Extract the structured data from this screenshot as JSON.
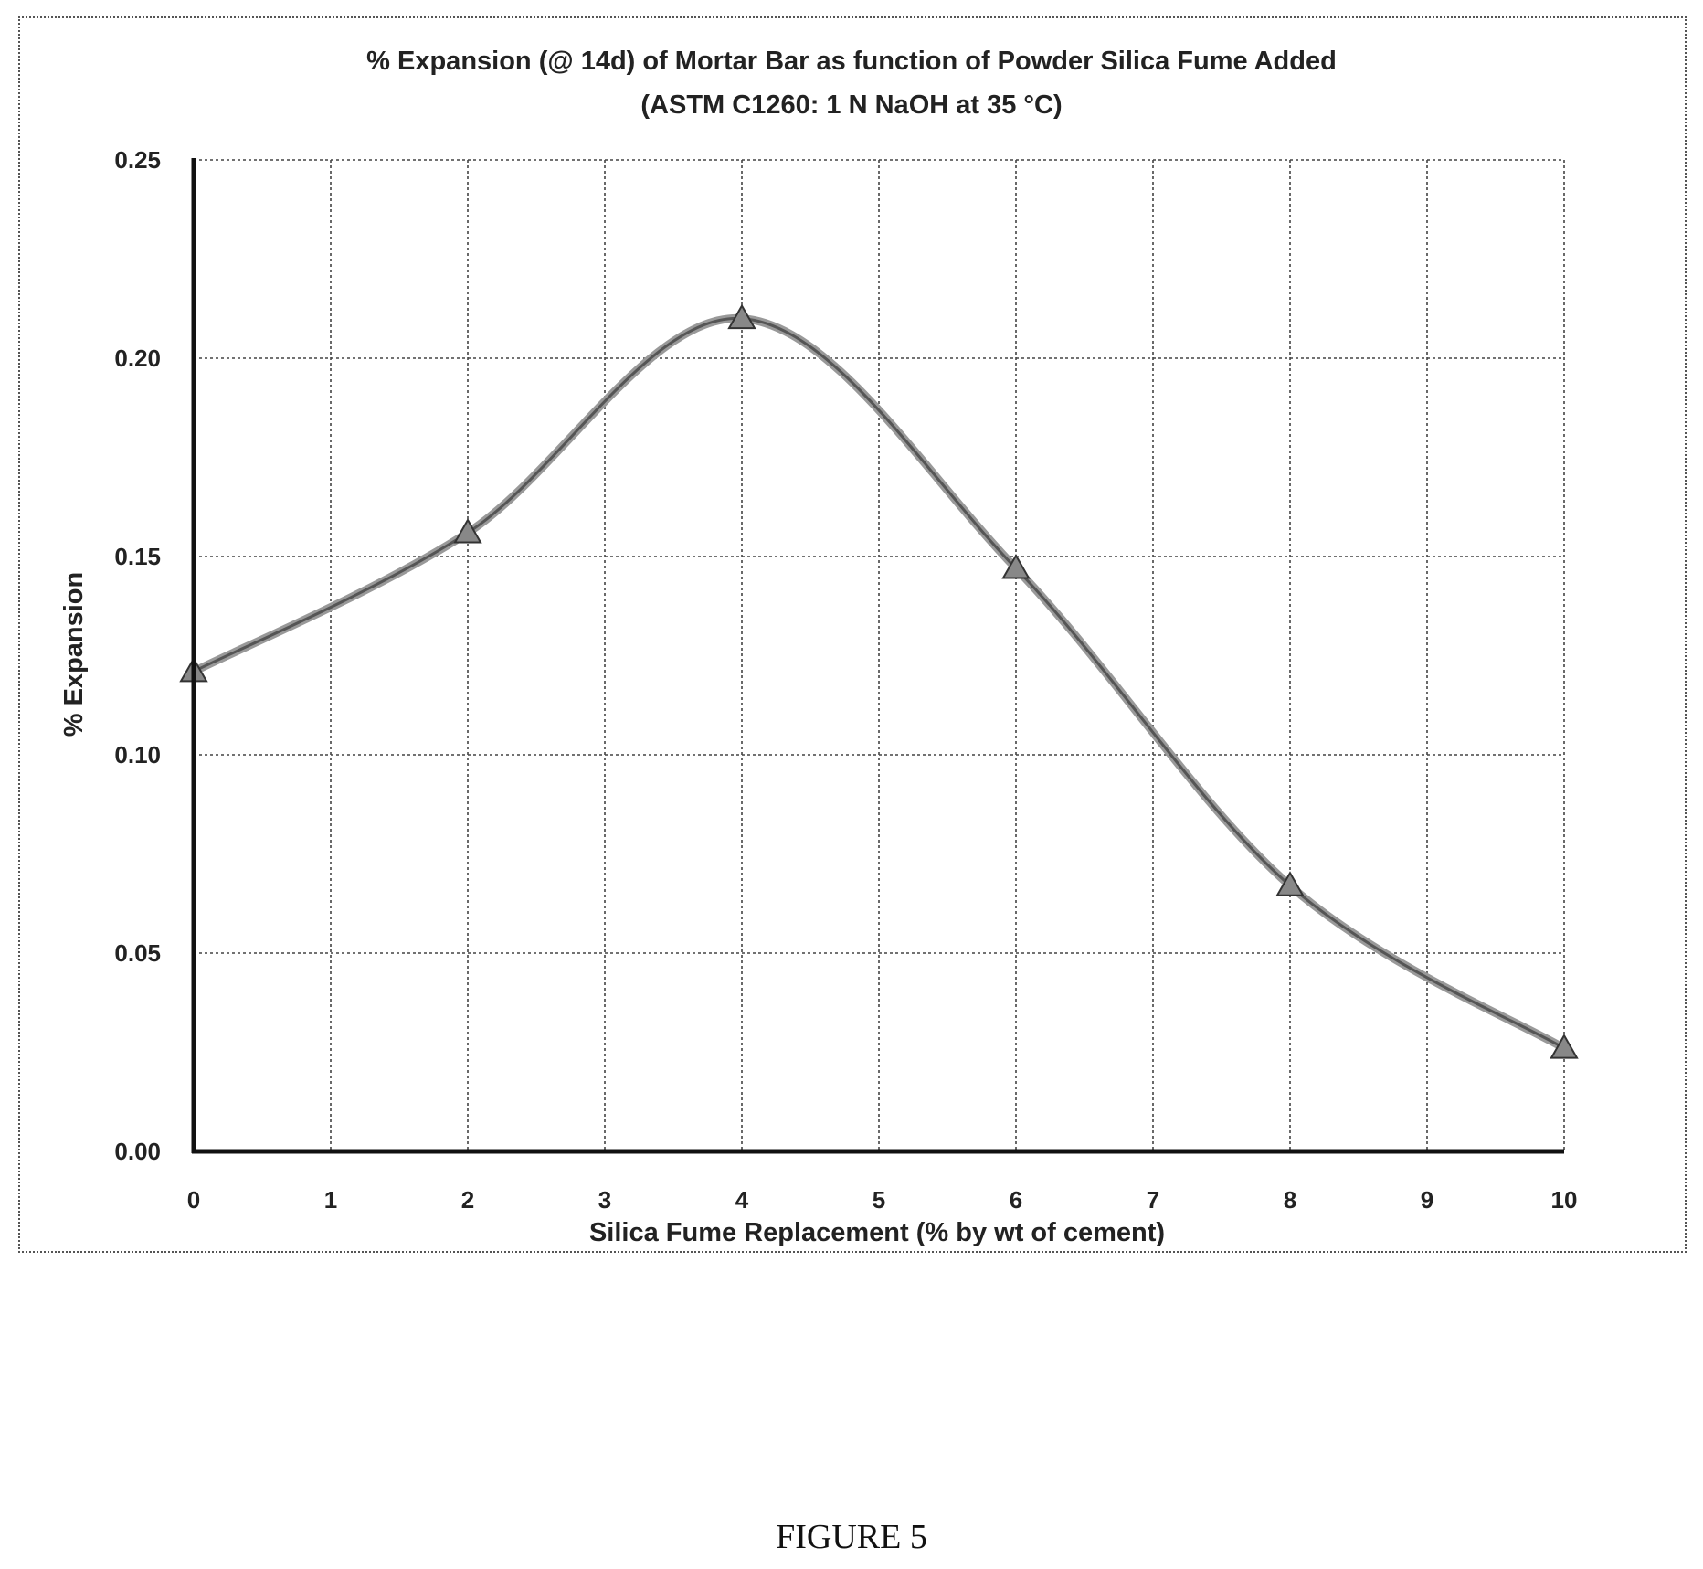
{
  "chart_data": {
    "type": "line",
    "title": "% Expansion (@ 14d) of Mortar Bar as function of Powder Silica Fume Added",
    "subtitle": "(ASTM C1260: 1 N NaOH at 35 °C)",
    "xlabel": "Silica Fume Replacement (% by wt of cement)",
    "ylabel": "% Expansion",
    "xlim": [
      0,
      10
    ],
    "ylim": [
      0,
      0.25
    ],
    "x_ticks": [
      "0",
      "1",
      "2",
      "3",
      "4",
      "5",
      "6",
      "7",
      "8",
      "9",
      "10"
    ],
    "y_ticks": [
      "0.00",
      "0.05",
      "0.10",
      "0.15",
      "0.20",
      "0.25"
    ],
    "grid": true,
    "smooth": true,
    "series": [
      {
        "color": "#555555",
        "marker": "triangle",
        "x": [
          0,
          2,
          4,
          6,
          8,
          10
        ],
        "y": [
          0.121,
          0.156,
          0.21,
          0.147,
          0.067,
          0.026
        ]
      }
    ]
  },
  "caption": "FIGURE 5"
}
